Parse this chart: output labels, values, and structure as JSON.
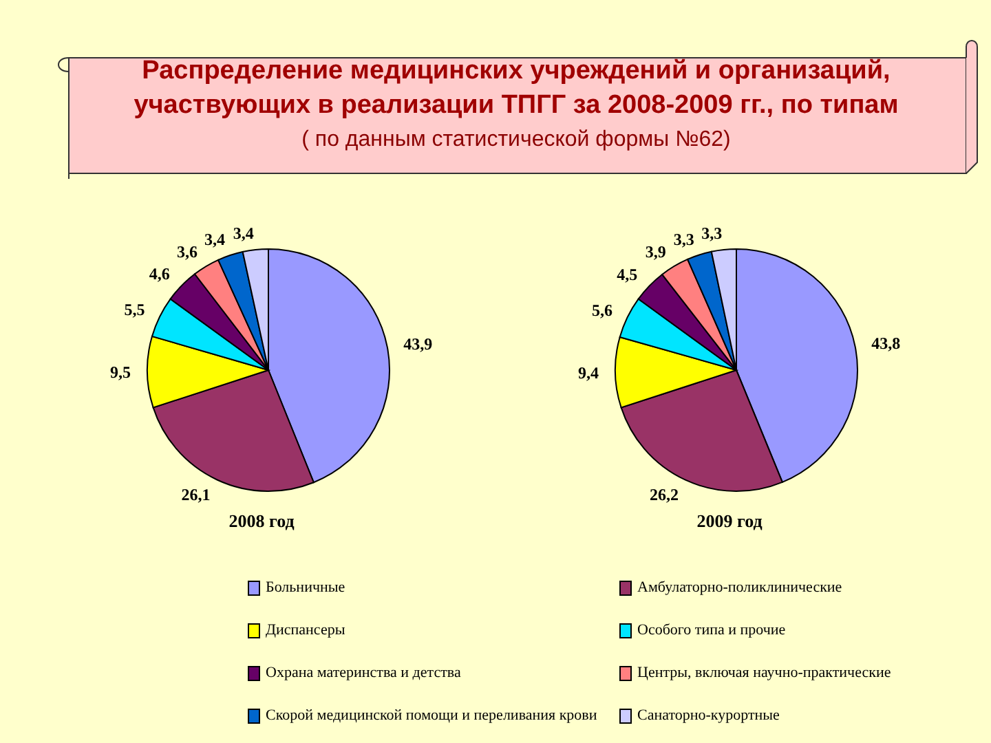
{
  "chart_data": [
    {
      "type": "pie",
      "title": "Распределение медицинских учреждений и организаций,\nучаствующих в реализации ТПГГ за 2008-2009 гг., по типам",
      "subtitle": "( по данным статистической формы №62)",
      "xlabel": "2008 год",
      "categories": [
        "Больничные",
        "Амбулаторно-поликлинические",
        "Диспансеры",
        "Особого типа и прочие",
        "Охрана материнства и детства",
        "Центры, включая научно-практические",
        "Скорой медицинской помощи и переливания крови",
        "Санаторно-курортные"
      ],
      "values": [
        43.9,
        26.1,
        9.5,
        5.5,
        4.6,
        3.6,
        3.4,
        3.4
      ],
      "value_labels": [
        "43,9",
        "26,1",
        "9,5",
        "5,5",
        "4,6",
        "3,6",
        "3,4",
        "3,4"
      ],
      "colors": [
        "#9999ff",
        "#993366",
        "#ffff00",
        "#00e5ff",
        "#660066",
        "#ff8080",
        "#0066cc",
        "#ccccff"
      ],
      "legend": "bottom"
    },
    {
      "type": "pie",
      "xlabel": "2009 год",
      "categories": [
        null,
        null,
        null,
        null,
        null,
        null,
        null,
        null
      ],
      "values": [
        43.8,
        26.2,
        9.4,
        5.6,
        4.5,
        3.9,
        3.3,
        3.3
      ],
      "value_labels": [
        "43,8",
        "26,2",
        "9,4",
        "5,6",
        "4,5",
        "3,9",
        "3,3",
        "3,3"
      ],
      "colors": [
        "#9999ff",
        "#993366",
        "#ffff00",
        "#00e5ff",
        "#660066",
        "#ff8080",
        "#0066cc",
        "#ccccff"
      ]
    }
  ]
}
